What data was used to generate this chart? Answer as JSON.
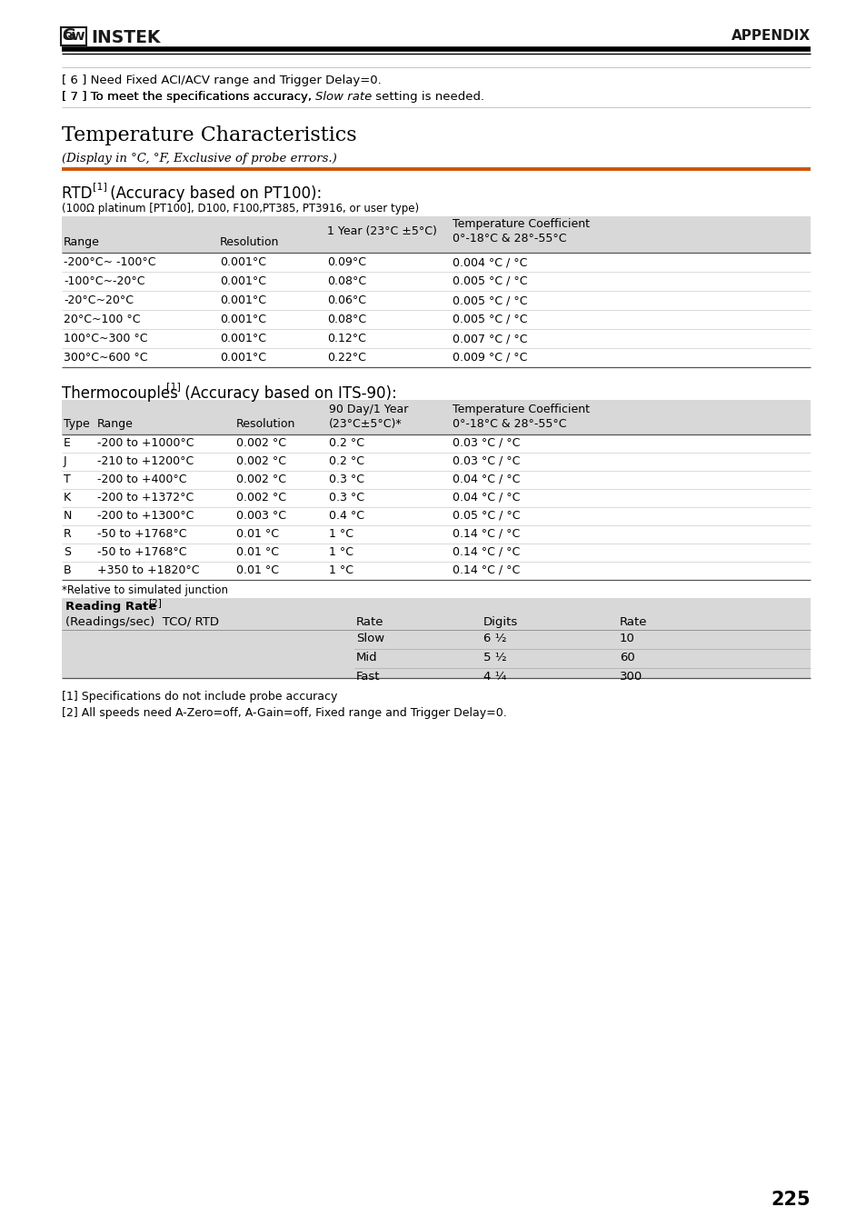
{
  "page_bg": "#ffffff",
  "logo_text": "GW INSTEK",
  "appendix_text": "APPENDIX",
  "orange_line_color": "#cc5500",
  "top_note1": "[ 6 ] Need Fixed ACI/ACV range and Trigger Delay=0.",
  "top_note2_pre": "[ 7 ] To meet the specifications accuracy, ",
  "top_note2_italic": "Slow rate",
  "top_note2_post": " setting is needed.",
  "section_title": "Temperature Characteristics",
  "subtitle": "(Display in °C, °F, Exclusive of probe errors.)",
  "rtd_title": "RTD ",
  "rtd_sup": "[1]",
  "rtd_title2": " (Accuracy based on PT100):",
  "rtd_subtitle": "(100Ω platinum [PT100], D100, F100,PT385, PT3916, or user type)",
  "rtd_header_bg": "#d8d8d8",
  "rtd_rows": [
    [
      "-200°C~ -100°C",
      "0.001°C",
      "0.09°C",
      "0.004 °C / °C"
    ],
    [
      "-100°C~-20°C",
      "0.001°C",
      "0.08°C",
      "0.005 °C / °C"
    ],
    [
      "-20°C~20°C",
      "0.001°C",
      "0.06°C",
      "0.005 °C / °C"
    ],
    [
      "20°C~100 °C",
      "0.001°C",
      "0.08°C",
      "0.005 °C / °C"
    ],
    [
      "100°C~300 °C",
      "0.001°C",
      "0.12°C",
      "0.007 °C / °C"
    ],
    [
      "300°C~600 °C",
      "0.001°C",
      "0.22°C",
      "0.009 °C / °C"
    ]
  ],
  "tc_title": "Thermocouples ",
  "tc_sup": "[1]",
  "tc_title2": " (Accuracy based on ITS-90):",
  "tc_header_bg": "#d8d8d8",
  "tc_rows": [
    [
      "E",
      "-200 to +1000°C",
      "0.002 °C",
      "0.2 °C",
      "0.03 °C / °C"
    ],
    [
      "J",
      "-210 to +1200°C",
      "0.002 °C",
      "0.2 °C",
      "0.03 °C / °C"
    ],
    [
      "T",
      "-200 to +400°C",
      "0.002 °C",
      "0.3 °C",
      "0.04 °C / °C"
    ],
    [
      "K",
      "-200 to +1372°C",
      "0.002 °C",
      "0.3 °C",
      "0.04 °C / °C"
    ],
    [
      "N",
      "-200 to +1300°C",
      "0.003 °C",
      "0.4 °C",
      "0.05 °C / °C"
    ],
    [
      "R",
      "-50 to +1768°C",
      "0.01 °C",
      "1 °C",
      "0.14 °C / °C"
    ],
    [
      "S",
      "-50 to +1768°C",
      "0.01 °C",
      "1 °C",
      "0.14 °C / °C"
    ],
    [
      "B",
      "+350 to +1820°C",
      "0.01 °C",
      "1 °C",
      "0.14 °C / °C"
    ]
  ],
  "rel_note": "*Relative to simulated junction",
  "reading_rate_bg": "#d8d8d8",
  "reading_rows": [
    [
      "Slow",
      "6 ½",
      "10"
    ],
    [
      "Mid",
      "5 ½",
      "60"
    ],
    [
      "Fast",
      "4 ¼",
      "300"
    ]
  ],
  "footnote1": "[1] Specifications do not include probe accuracy",
  "footnote2": "[2] All speeds need A-Zero=off, A-Gain=off, Fixed range and Trigger Delay=0.",
  "page_number": "225",
  "lmargin": 68,
  "rmargin": 892
}
